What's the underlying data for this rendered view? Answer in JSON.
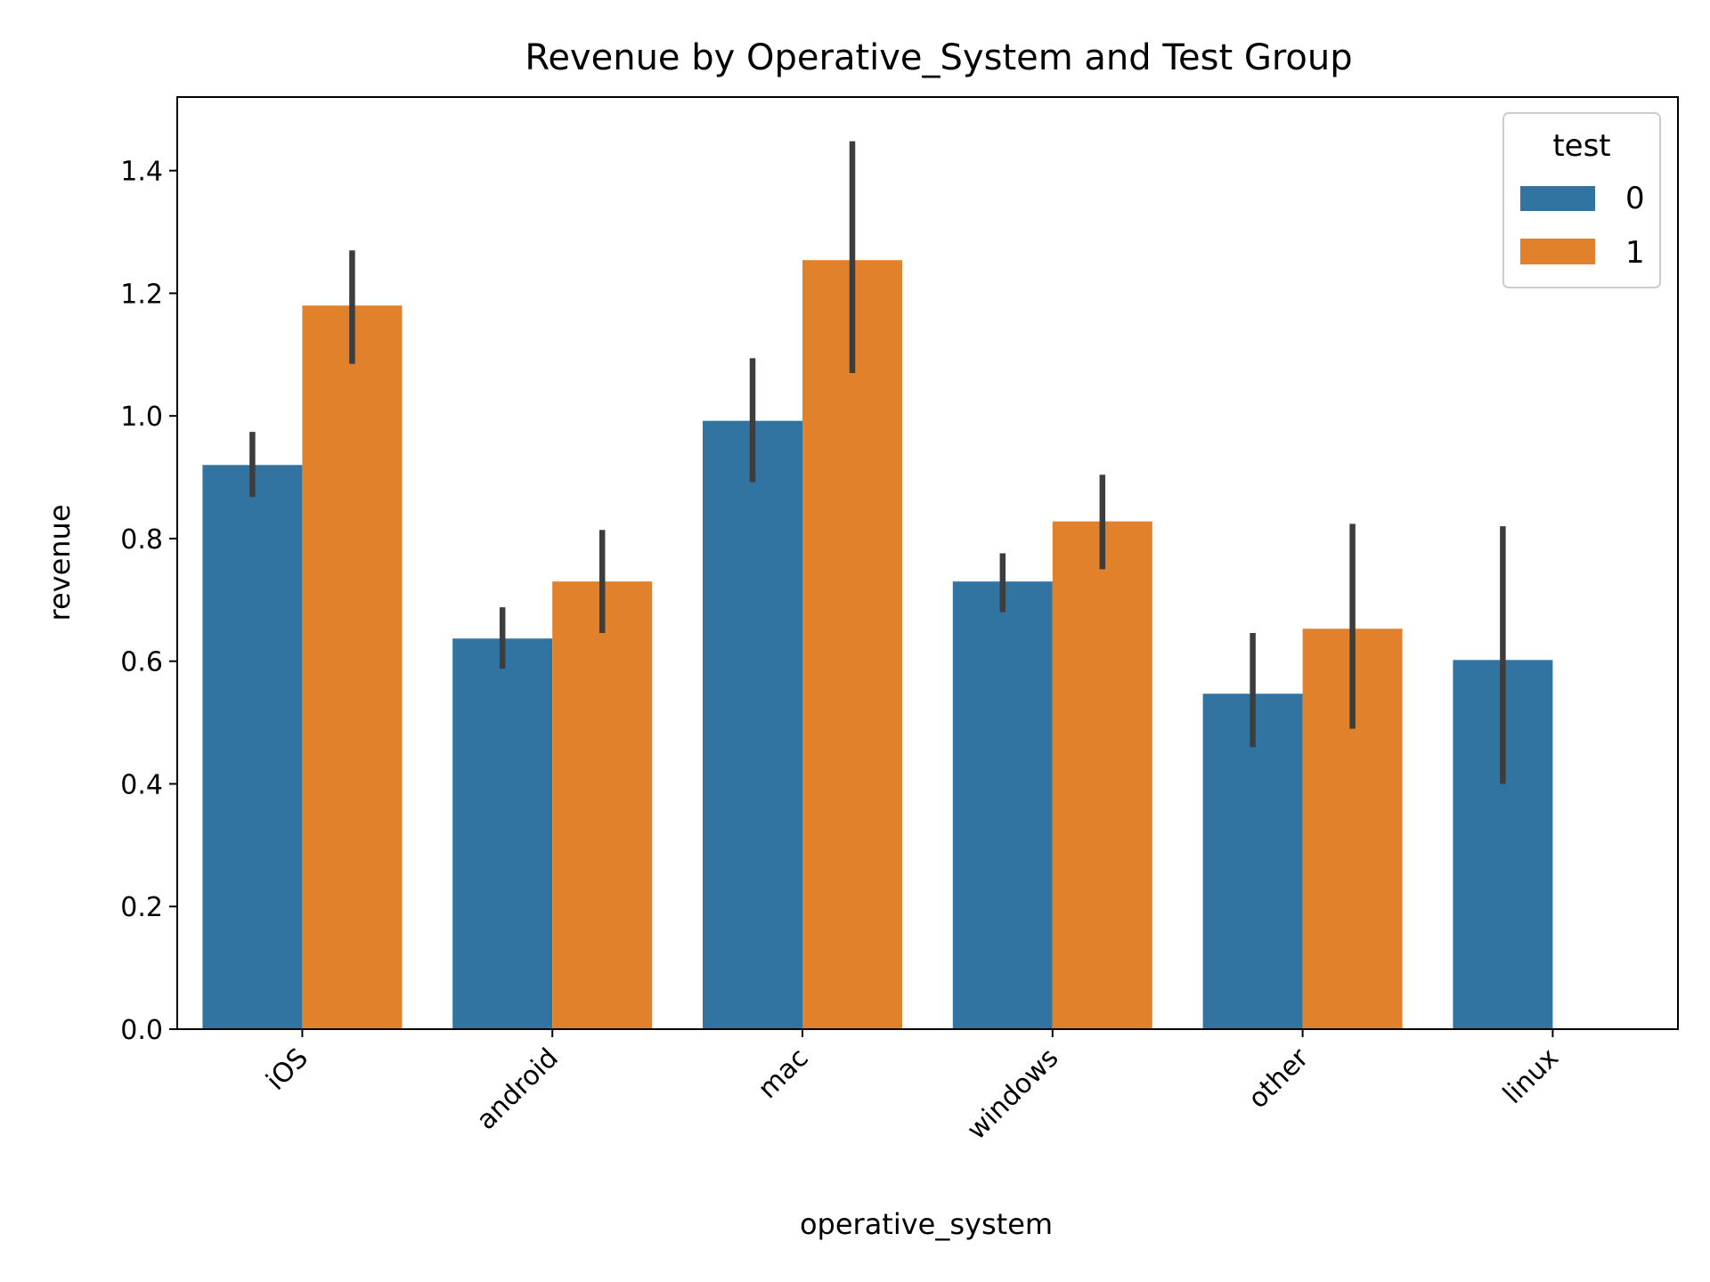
{
  "chart_data": {
    "type": "bar",
    "title": "Revenue by Operative_System and Test Group",
    "xlabel": "operative_system",
    "ylabel": "revenue",
    "categories": [
      "iOS",
      "android",
      "mac",
      "windows",
      "other",
      "linux"
    ],
    "ylim": [
      0,
      1.52
    ],
    "yticks": [
      "0.0",
      "0.2",
      "0.4",
      "0.6",
      "0.8",
      "1.0",
      "1.2",
      "1.4"
    ],
    "grid": false,
    "legend": {
      "title": "test",
      "placement": "top-right"
    },
    "series": [
      {
        "name": "0",
        "color": "#3274a1",
        "values": [
          0.92,
          0.637,
          0.992,
          0.73,
          0.547,
          0.602
        ],
        "ci_low": [
          0.868,
          0.588,
          0.892,
          0.68,
          0.46,
          0.4
        ],
        "ci_high": [
          0.974,
          0.688,
          1.094,
          0.776,
          0.646,
          0.82
        ]
      },
      {
        "name": "1",
        "color": "#e1812c",
        "values": [
          1.18,
          0.73,
          1.254,
          0.828,
          0.653,
          null
        ],
        "ci_low": [
          1.085,
          0.646,
          1.07,
          0.75,
          0.49,
          null
        ],
        "ci_high": [
          1.27,
          0.814,
          1.448,
          0.904,
          0.824,
          null
        ]
      }
    ],
    "errorbar_color": "#3d3d3d"
  }
}
